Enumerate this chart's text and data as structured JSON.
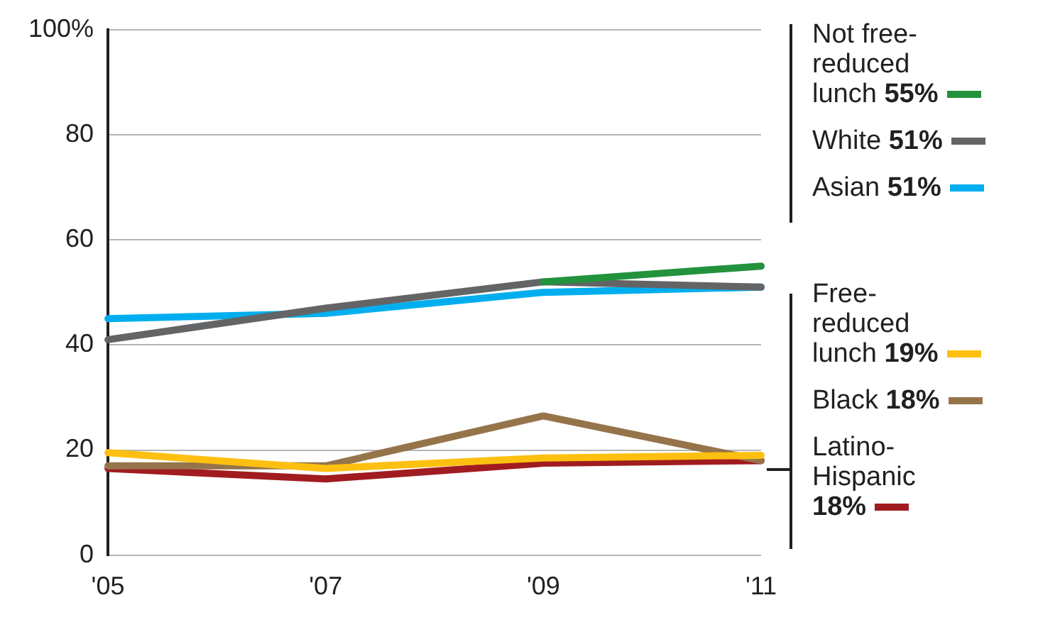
{
  "chart_data": {
    "type": "line",
    "categories": [
      "'05",
      "'07",
      "'09",
      "'11"
    ],
    "series": [
      {
        "name": "Not free-reduced lunch 55%",
        "color": "#23923c",
        "values": [
          null,
          null,
          52,
          55
        ]
      },
      {
        "name": "White 51%",
        "color": "#636466",
        "values": [
          41,
          47,
          52,
          51
        ]
      },
      {
        "name": "Asian 51%",
        "color": "#00aeef",
        "values": [
          45,
          46,
          50,
          51
        ]
      },
      {
        "name": "Free-reduced lunch 19%",
        "color": "#fdc010",
        "values": [
          19.5,
          16.5,
          18.5,
          19
        ]
      },
      {
        "name": "Black 18%",
        "color": "#96744a",
        "values": [
          17,
          17,
          26.5,
          18
        ]
      },
      {
        "name": "Latino-Hispanic 18%",
        "color": "#a01c20",
        "values": [
          16.5,
          14.5,
          17.5,
          18
        ]
      }
    ],
    "ylim": [
      0,
      100
    ],
    "yticks": [
      0,
      20,
      40,
      60,
      {
        "value": 100,
        "label": "100%"
      },
      80
    ],
    "grid": "y",
    "legend": "right",
    "marker": "none",
    "line_style": "solid"
  }
}
